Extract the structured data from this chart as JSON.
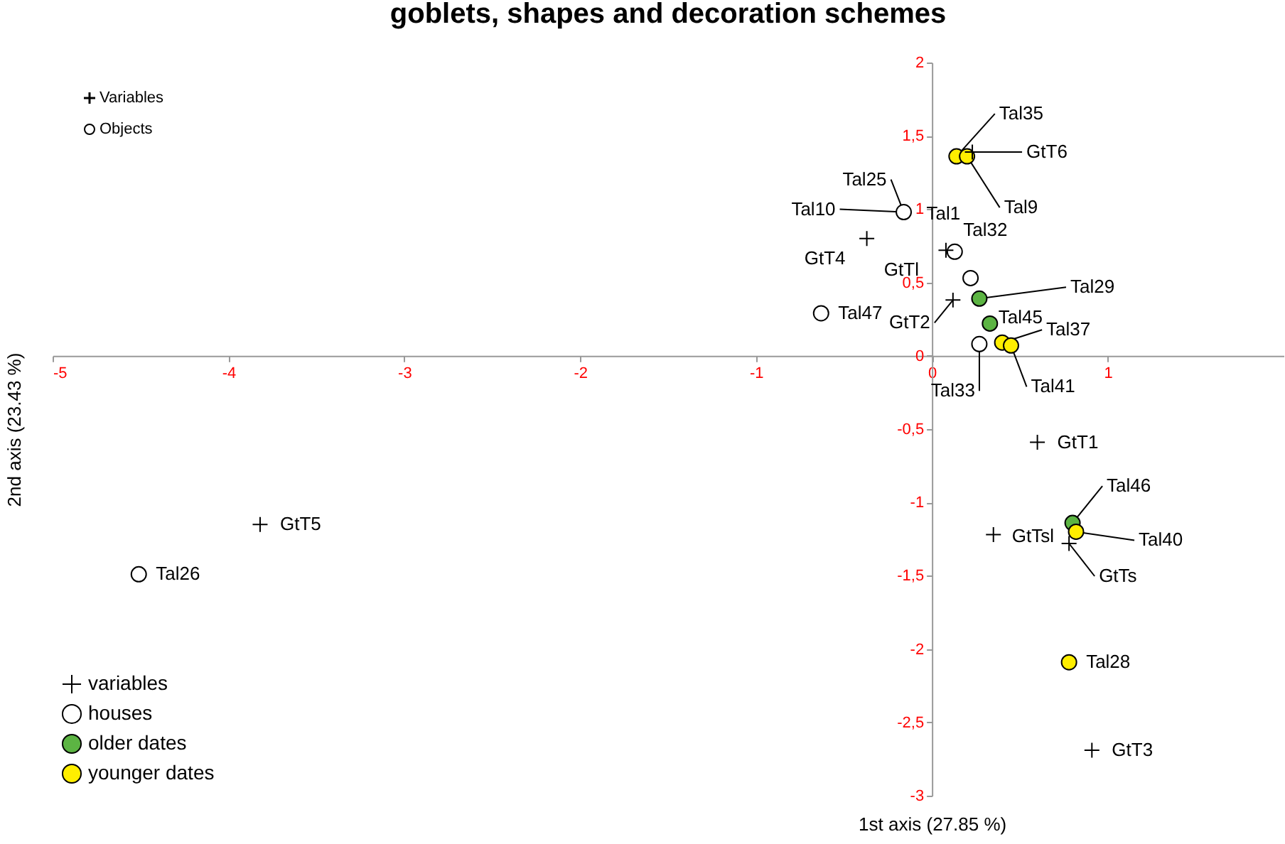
{
  "chart_data": {
    "type": "scatter",
    "title": "goblets, shapes and decoration schemes",
    "xlabel": "1st axis (27.85 %)",
    "ylabel": "2nd axis (23.43 %)",
    "xlim": [
      -5,
      2
    ],
    "ylim": [
      -3,
      2
    ],
    "xticks": [
      -5,
      -4,
      -3,
      -2,
      -1,
      0,
      1
    ],
    "yticks": [
      {
        "value": -3,
        "label": "-3"
      },
      {
        "value": -2.5,
        "label": "-2,5"
      },
      {
        "value": -2,
        "label": "-2"
      },
      {
        "value": -1.5,
        "label": "-1,5"
      },
      {
        "value": -1,
        "label": "-1"
      },
      {
        "value": -0.5,
        "label": "-0,5"
      },
      {
        "value": 0,
        "label": "0"
      },
      {
        "value": 0.5,
        "label": "0,5"
      },
      {
        "value": 1,
        "label": "1"
      },
      {
        "value": 1.5,
        "label": "1,5"
      },
      {
        "value": 2,
        "label": "2"
      }
    ],
    "grid": false,
    "legend": "bottom left",
    "series": [
      {
        "name": "variables",
        "color": "#000000",
        "marker": "cross",
        "x": [
          0.23,
          -0.37,
          0.08,
          0.12,
          0.6,
          0.35,
          0.78,
          0.91,
          -3.82
        ],
        "values": [
          1.39,
          0.8,
          0.72,
          0.38,
          -0.59,
          -1.22,
          -1.28,
          -2.69,
          -1.15
        ]
      },
      {
        "name": "houses",
        "color": "#ffffff",
        "marker": "circle",
        "x": [
          -0.16,
          0.13,
          0.22,
          -0.63,
          0.27,
          -4.51
        ],
        "values": [
          0.98,
          0.71,
          0.53,
          0.29,
          0.08,
          -1.49
        ]
      },
      {
        "name": "older dates",
        "color": "#5cb443",
        "marker": "circle",
        "x": [
          0.27,
          0.33,
          0.8
        ],
        "values": [
          0.39,
          0.22,
          -1.14
        ]
      },
      {
        "name": "younger dates",
        "color": "#ffee00",
        "marker": "circle",
        "x": [
          0.14,
          0.2,
          0.4,
          0.45,
          0.82,
          0.78
        ],
        "values": [
          1.36,
          1.36,
          0.09,
          0.07,
          -1.2,
          -2.09
        ]
      }
    ],
    "annotations": [
      "Variables",
      "Objects",
      {
        "text": "Tal35",
        "x": 0.14,
        "y": 1.36
      },
      {
        "text": "GtT6",
        "x": 0.23,
        "y": 1.39
      },
      {
        "text": "Tal9",
        "x": 0.2,
        "y": 1.36
      },
      {
        "text": "Tal25",
        "x": -0.16,
        "y": 0.98
      },
      {
        "text": "Tal10",
        "x": -0.16,
        "y": 0.98
      },
      {
        "text": "Tal1",
        "x": -0.16,
        "y": 0.98
      },
      {
        "text": "GtT4",
        "x": -0.37,
        "y": 0.8
      },
      {
        "text": "GtTl",
        "x": 0.08,
        "y": 0.72
      },
      {
        "text": "Tal32",
        "x": 0.13,
        "y": 0.71
      },
      {
        "text": "Tal29",
        "x": 0.27,
        "y": 0.39
      },
      {
        "text": "GtT2",
        "x": 0.12,
        "y": 0.38
      },
      {
        "text": "Tal47",
        "x": -0.63,
        "y": 0.29
      },
      {
        "text": "Tal45",
        "x": 0.33,
        "y": 0.22
      },
      {
        "text": "Tal37",
        "x": 0.4,
        "y": 0.09
      },
      {
        "text": "Tal33",
        "x": 0.27,
        "y": 0.08
      },
      {
        "text": "Tal41",
        "x": 0.45,
        "y": 0.07
      },
      {
        "text": "GtT1",
        "x": 0.6,
        "y": -0.59
      },
      {
        "text": "Tal46",
        "x": 0.8,
        "y": -1.14
      },
      {
        "text": "Tal40",
        "x": 0.82,
        "y": -1.2
      },
      {
        "text": "GtTsl",
        "x": 0.35,
        "y": -1.22
      },
      {
        "text": "GtTs",
        "x": 0.78,
        "y": -1.28
      },
      {
        "text": "Tal28",
        "x": 0.78,
        "y": -2.09
      },
      {
        "text": "GtT3",
        "x": 0.91,
        "y": -2.69
      },
      {
        "text": "GtT5",
        "x": -3.82,
        "y": -1.15
      },
      {
        "text": "Tal26",
        "x": -4.51,
        "y": -1.49
      }
    ]
  }
}
